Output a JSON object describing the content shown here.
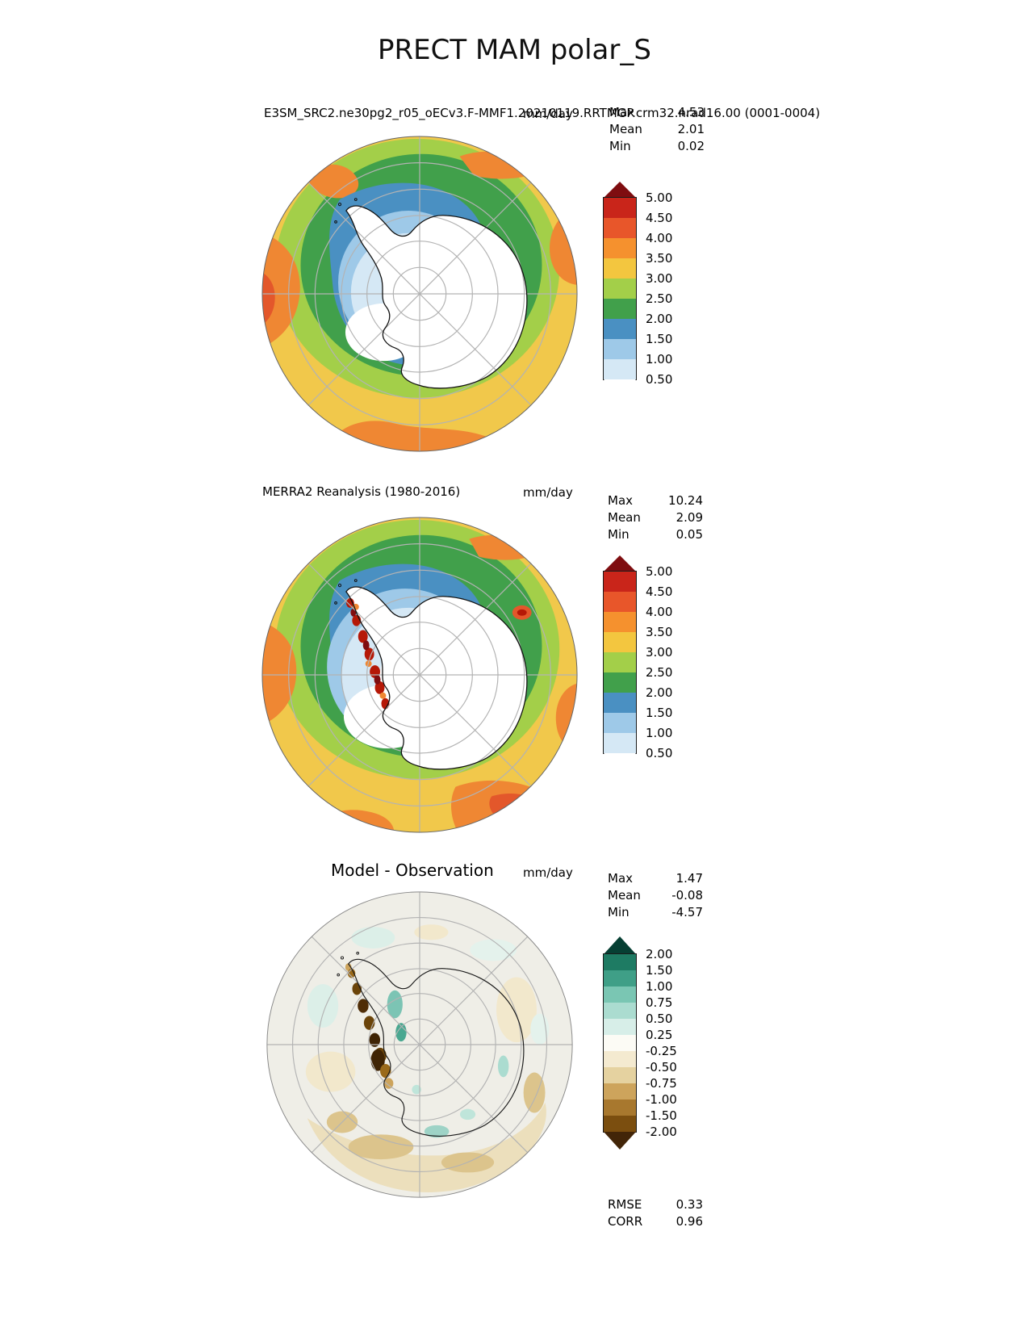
{
  "figure": {
    "title": "PRECT MAM polar_S"
  },
  "panels": [
    {
      "title": "E3SM_SRC2.ne30pg2_r05_oECv3.F-MMF1.20210119.RRTMGP.crm32.nrad16.00 (0001-0004)",
      "units": "mm/day",
      "stats": [
        {
          "label": "Max",
          "value": "4.53"
        },
        {
          "label": "Mean",
          "value": "2.01"
        },
        {
          "label": "Min",
          "value": "0.02"
        }
      ]
    },
    {
      "title": "MERRA2 Reanalysis (1980-2016)",
      "units": "mm/day",
      "stats": [
        {
          "label": "Max",
          "value": "10.24"
        },
        {
          "label": "Mean",
          "value": "2.09"
        },
        {
          "label": "Min",
          "value": "0.05"
        }
      ]
    },
    {
      "title": "Model - Observation",
      "units": "mm/day",
      "stats": [
        {
          "label": "Max",
          "value": "1.47"
        },
        {
          "label": "Mean",
          "value": "-0.08"
        },
        {
          "label": "Min",
          "value": "-4.57"
        }
      ],
      "metrics": [
        {
          "label": "RMSE",
          "value": "0.33"
        },
        {
          "label": "CORR",
          "value": "0.96"
        }
      ]
    }
  ],
  "colorbars": {
    "precip": {
      "ticks": [
        "5.00",
        "4.50",
        "4.00",
        "3.50",
        "3.00",
        "2.50",
        "2.00",
        "1.50",
        "1.00",
        "0.50"
      ],
      "colors": [
        "#7f0d10",
        "#c9251a",
        "#e8562a",
        "#f5912e",
        "#f3c63f",
        "#a3cf49",
        "#41a04b",
        "#4a90c2",
        "#9ec9e8",
        "#d5e8f5",
        "#ffffff"
      ]
    },
    "diff": {
      "ticks": [
        "2.00",
        "1.50",
        "1.00",
        "0.75",
        "0.50",
        "0.25",
        "-0.25",
        "-0.50",
        "-0.75",
        "-1.00",
        "-1.50",
        "-2.00"
      ],
      "colors": [
        "#063f33",
        "#1e7b63",
        "#3f9f87",
        "#7ac6b3",
        "#abdcd0",
        "#d7eee8",
        "#fcfbf5",
        "#f4ead0",
        "#e5d2a0",
        "#cda45c",
        "#a8782e",
        "#7b4e0f",
        "#422508"
      ]
    }
  },
  "chart_data": [
    {
      "type": "heatmap",
      "projection": "south_polar_stereographic",
      "title": "E3SM_SRC2.ne30pg2_r05_oECv3.F-MMF1.20210119.RRTMGP.crm32.nrad16.00 (0001-0004)",
      "units": "mm/day",
      "stats": {
        "max": 4.53,
        "mean": 2.01,
        "min": 0.02
      },
      "levels": [
        0.5,
        1.0,
        1.5,
        2.0,
        2.5,
        3.0,
        3.5,
        4.0,
        4.5,
        5.0
      ],
      "palette_top_to_bottom": [
        "#7f0d10",
        "#c9251a",
        "#e8562a",
        "#f5912e",
        "#f3c63f",
        "#a3cf49",
        "#41a04b",
        "#4a90c2",
        "#9ec9e8",
        "#d5e8f5",
        "#ffffff"
      ],
      "legend_position": "right"
    },
    {
      "type": "heatmap",
      "projection": "south_polar_stereographic",
      "title": "MERRA2 Reanalysis (1980-2016)",
      "units": "mm/day",
      "stats": {
        "max": 10.24,
        "mean": 2.09,
        "min": 0.05
      },
      "levels": [
        0.5,
        1.0,
        1.5,
        2.0,
        2.5,
        3.0,
        3.5,
        4.0,
        4.5,
        5.0
      ],
      "palette_top_to_bottom": [
        "#7f0d10",
        "#c9251a",
        "#e8562a",
        "#f5912e",
        "#f3c63f",
        "#a3cf49",
        "#41a04b",
        "#4a90c2",
        "#9ec9e8",
        "#d5e8f5",
        "#ffffff"
      ],
      "legend_position": "right"
    },
    {
      "type": "heatmap",
      "projection": "south_polar_stereographic",
      "title": "Model - Observation",
      "units": "mm/day",
      "stats": {
        "max": 1.47,
        "mean": -0.08,
        "min": -4.57
      },
      "levels": [
        -2.0,
        -1.5,
        -1.0,
        -0.75,
        -0.5,
        -0.25,
        0.25,
        0.5,
        0.75,
        1.0,
        1.5,
        2.0
      ],
      "palette_top_to_bottom": [
        "#063f33",
        "#1e7b63",
        "#3f9f87",
        "#7ac6b3",
        "#abdcd0",
        "#d7eee8",
        "#fcfbf5",
        "#f4ead0",
        "#e5d2a0",
        "#cda45c",
        "#a8782e",
        "#7b4e0f",
        "#422508"
      ],
      "metrics": {
        "rmse": 0.33,
        "corr": 0.96
      },
      "legend_position": "right"
    }
  ]
}
